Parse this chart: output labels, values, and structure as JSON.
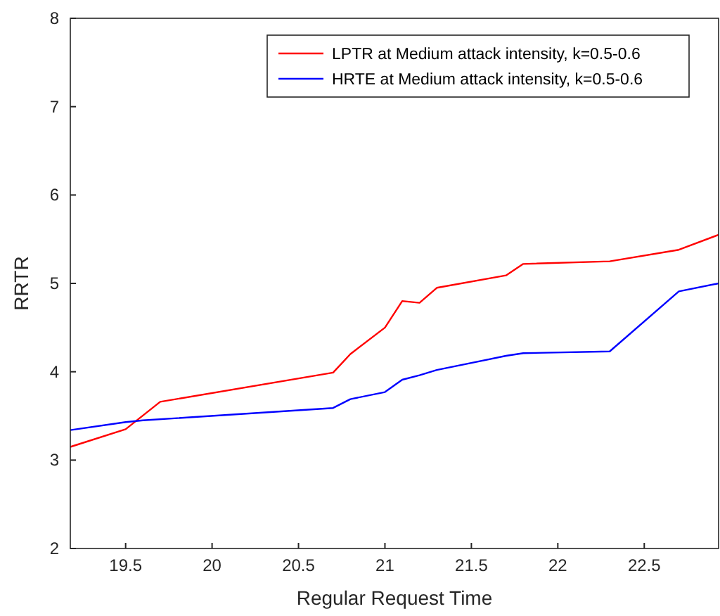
{
  "chart_data": {
    "type": "line",
    "xlabel": "Regular Request Time",
    "ylabel": "RRTR",
    "xlim": [
      19.18,
      22.93
    ],
    "xticks": [
      19.5,
      20,
      20.5,
      21,
      21.5,
      22,
      22.5
    ],
    "ylim": [
      2,
      8
    ],
    "yticks": [
      2,
      3,
      4,
      5,
      6,
      7,
      8
    ],
    "legend": "top right",
    "grid": false,
    "series": [
      {
        "name": "LPTR at Medium attack intensity, k=0.5-0.6",
        "color": "#ff0000",
        "x": [
          19.18,
          19.5,
          19.7,
          20.7,
          20.8,
          21.0,
          21.1,
          21.2,
          21.3,
          21.7,
          21.8,
          22.3,
          22.7,
          22.93
        ],
        "values": [
          3.15,
          3.35,
          3.66,
          3.99,
          4.2,
          4.5,
          4.8,
          4.78,
          4.95,
          5.09,
          5.22,
          5.25,
          5.38,
          5.55
        ]
      },
      {
        "name": "HRTE at Medium attack intensity, k=0.5-0.6",
        "color": "#0000ff",
        "x": [
          19.18,
          19.5,
          19.6,
          20.7,
          20.8,
          21.0,
          21.1,
          21.2,
          21.3,
          21.7,
          21.8,
          22.3,
          22.7,
          22.93
        ],
        "values": [
          3.34,
          3.43,
          3.45,
          3.59,
          3.69,
          3.77,
          3.91,
          3.96,
          4.02,
          4.18,
          4.21,
          4.23,
          4.91,
          5.0
        ]
      }
    ]
  }
}
